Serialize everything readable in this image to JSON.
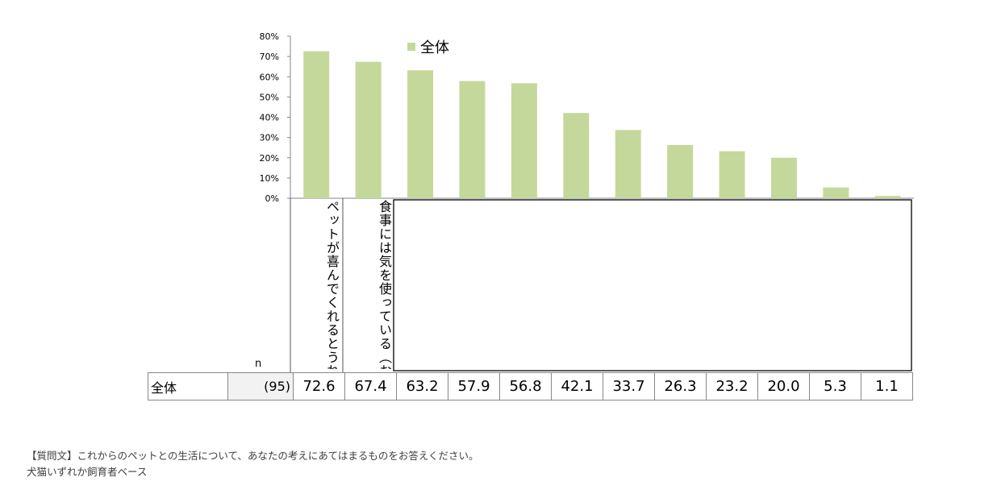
{
  "chart_data": {
    "type": "bar",
    "categories": [
      "ペットが喜んでくれるとうれしい",
      "食事には気を使っている（おいしさ、栄養バランス、無添加など）",
      "",
      "",
      "",
      "",
      "",
      "",
      "",
      "",
      "",
      ""
    ],
    "series": [
      {
        "name": "全体",
        "values": [
          72.6,
          67.4,
          63.2,
          57.9,
          56.8,
          42.1,
          33.7,
          26.3,
          23.2,
          20.0,
          5.3,
          1.1
        ]
      }
    ],
    "y_ticks": [
      "0%",
      "10%",
      "20%",
      "30%",
      "40%",
      "50%",
      "60%",
      "70%",
      "80%"
    ],
    "ylim": [
      0,
      80
    ],
    "grid": false,
    "legend_placement": "top",
    "bar_color": "#c5d89b"
  },
  "table": {
    "n_header": "n",
    "row_label": "全体",
    "n_value": "(95)",
    "values": [
      "72.6",
      "67.4",
      "63.2",
      "57.9",
      "56.8",
      "42.1",
      "33.7",
      "26.3",
      "23.2",
      "20.0",
      "5.3",
      "1.1"
    ]
  },
  "notes": {
    "question": "【質問文】これからのペットとの生活について、あなたの考えにあてはまるものをお答えください。",
    "base": "犬猫いずれか飼育者ベース"
  }
}
